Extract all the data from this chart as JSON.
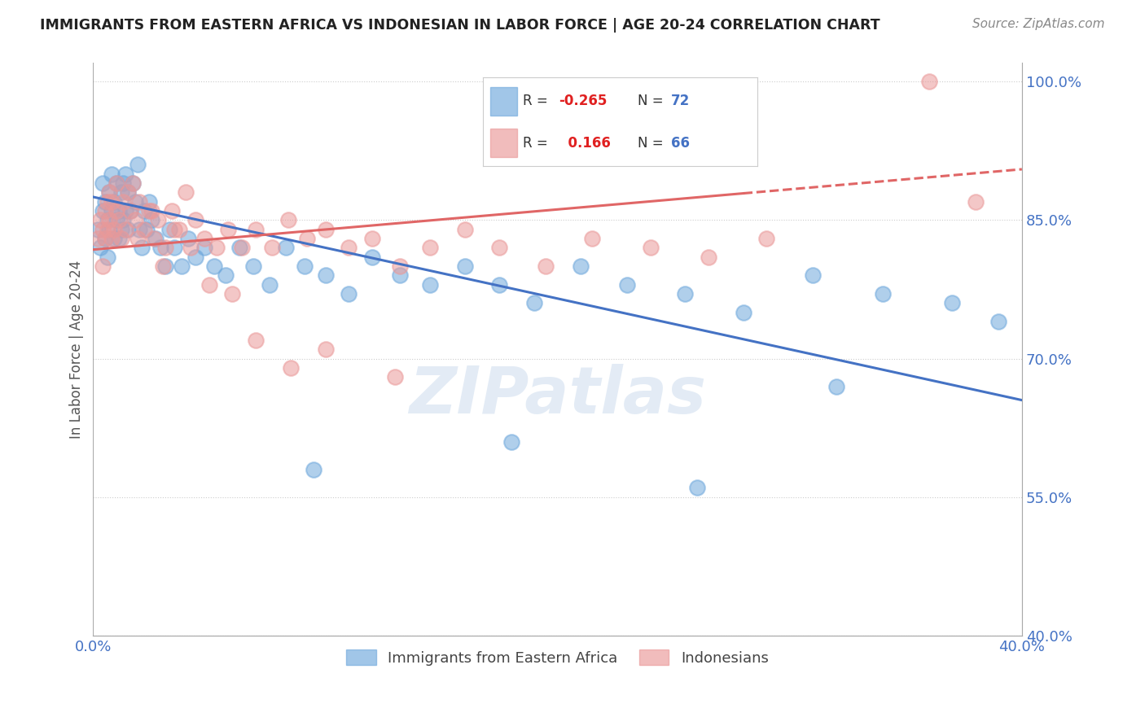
{
  "title": "IMMIGRANTS FROM EASTERN AFRICA VS INDONESIAN IN LABOR FORCE | AGE 20-24 CORRELATION CHART",
  "source": "Source: ZipAtlas.com",
  "ylabel": "In Labor Force | Age 20-24",
  "xlim": [
    0.0,
    0.4
  ],
  "ylim": [
    0.4,
    1.02
  ],
  "xticks": [
    0.0,
    0.08,
    0.16,
    0.24,
    0.32,
    0.4
  ],
  "xtick_labels": [
    "0.0%",
    "",
    "",
    "",
    "",
    "40.0%"
  ],
  "yticks_right": [
    1.0,
    0.85,
    0.7,
    0.55,
    0.4
  ],
  "ytick_labels_right": [
    "100.0%",
    "85.0%",
    "70.0%",
    "55.0%",
    "40.0%"
  ],
  "blue_R": -0.265,
  "blue_N": 72,
  "pink_R": 0.166,
  "pink_N": 66,
  "blue_color": "#6fa8dc",
  "pink_color": "#ea9999",
  "blue_edge_color": "#4472c4",
  "pink_edge_color": "#c0504d",
  "blue_line_color": "#4472c4",
  "pink_line_color": "#e06666",
  "blue_label": "Immigrants from Eastern Africa",
  "pink_label": "Indonesians",
  "watermark": "ZIPatlas",
  "blue_line_y0": 0.875,
  "blue_line_y1": 0.655,
  "pink_line_y0": 0.818,
  "pink_line_y1": 0.905,
  "blue_scatter_x": [
    0.002,
    0.003,
    0.004,
    0.004,
    0.005,
    0.005,
    0.006,
    0.006,
    0.007,
    0.007,
    0.008,
    0.008,
    0.009,
    0.009,
    0.01,
    0.01,
    0.011,
    0.011,
    0.012,
    0.012,
    0.013,
    0.013,
    0.014,
    0.014,
    0.015,
    0.015,
    0.016,
    0.017,
    0.018,
    0.019,
    0.02,
    0.021,
    0.022,
    0.023,
    0.024,
    0.025,
    0.027,
    0.029,
    0.031,
    0.033,
    0.035,
    0.038,
    0.041,
    0.044,
    0.048,
    0.052,
    0.057,
    0.063,
    0.069,
    0.076,
    0.083,
    0.091,
    0.1,
    0.11,
    0.12,
    0.132,
    0.145,
    0.16,
    0.175,
    0.19,
    0.21,
    0.23,
    0.255,
    0.28,
    0.31,
    0.34,
    0.37,
    0.39,
    0.26,
    0.32,
    0.18,
    0.095
  ],
  "blue_scatter_y": [
    0.84,
    0.82,
    0.86,
    0.89,
    0.83,
    0.87,
    0.81,
    0.85,
    0.84,
    0.88,
    0.86,
    0.9,
    0.83,
    0.87,
    0.85,
    0.89,
    0.83,
    0.86,
    0.84,
    0.88,
    0.85,
    0.89,
    0.86,
    0.9,
    0.84,
    0.88,
    0.86,
    0.89,
    0.87,
    0.91,
    0.84,
    0.82,
    0.86,
    0.84,
    0.87,
    0.85,
    0.83,
    0.82,
    0.8,
    0.84,
    0.82,
    0.8,
    0.83,
    0.81,
    0.82,
    0.8,
    0.79,
    0.82,
    0.8,
    0.78,
    0.82,
    0.8,
    0.79,
    0.77,
    0.81,
    0.79,
    0.78,
    0.8,
    0.78,
    0.76,
    0.8,
    0.78,
    0.77,
    0.75,
    0.79,
    0.77,
    0.76,
    0.74,
    0.56,
    0.67,
    0.61,
    0.58
  ],
  "pink_scatter_x": [
    0.002,
    0.003,
    0.004,
    0.004,
    0.005,
    0.005,
    0.006,
    0.006,
    0.007,
    0.007,
    0.008,
    0.008,
    0.009,
    0.01,
    0.01,
    0.011,
    0.012,
    0.013,
    0.014,
    0.015,
    0.016,
    0.017,
    0.018,
    0.019,
    0.02,
    0.022,
    0.024,
    0.026,
    0.028,
    0.031,
    0.034,
    0.037,
    0.04,
    0.044,
    0.048,
    0.053,
    0.058,
    0.064,
    0.07,
    0.077,
    0.084,
    0.092,
    0.1,
    0.11,
    0.12,
    0.132,
    0.145,
    0.16,
    0.175,
    0.195,
    0.215,
    0.24,
    0.265,
    0.29,
    0.025,
    0.03,
    0.035,
    0.042,
    0.05,
    0.06,
    0.07,
    0.085,
    0.1,
    0.13,
    0.36,
    0.38
  ],
  "pink_scatter_y": [
    0.83,
    0.85,
    0.8,
    0.84,
    0.86,
    0.83,
    0.87,
    0.84,
    0.85,
    0.88,
    0.83,
    0.87,
    0.84,
    0.86,
    0.89,
    0.85,
    0.83,
    0.87,
    0.84,
    0.88,
    0.86,
    0.89,
    0.85,
    0.83,
    0.87,
    0.84,
    0.86,
    0.83,
    0.85,
    0.82,
    0.86,
    0.84,
    0.88,
    0.85,
    0.83,
    0.82,
    0.84,
    0.82,
    0.84,
    0.82,
    0.85,
    0.83,
    0.84,
    0.82,
    0.83,
    0.8,
    0.82,
    0.84,
    0.82,
    0.8,
    0.83,
    0.82,
    0.81,
    0.83,
    0.86,
    0.8,
    0.84,
    0.82,
    0.78,
    0.77,
    0.72,
    0.69,
    0.71,
    0.68,
    1.0,
    0.87
  ]
}
